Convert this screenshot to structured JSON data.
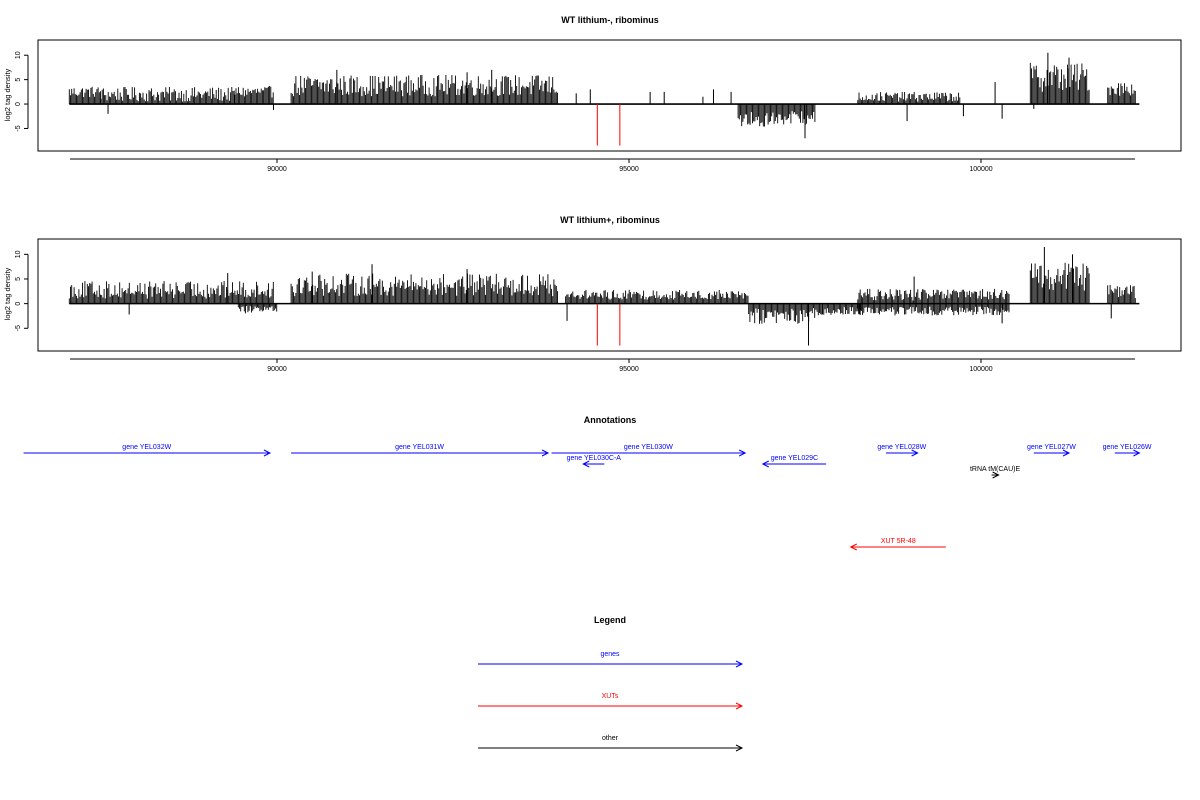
{
  "chart_data": [
    {
      "type": "bar",
      "title": "WT lithium-, ribominus",
      "xlabel": "",
      "ylabel": "log2 tag density",
      "xlim": [
        86100,
        101600
      ],
      "ylim": [
        -9,
        12.5
      ],
      "xticks": [
        90000,
        95000,
        100000
      ],
      "yticks": [
        -5,
        0,
        5,
        10
      ],
      "xtick_labels": [
        "90000",
        "95000",
        "100000"
      ],
      "ytick_labels": [
        "-5",
        "0",
        "5",
        "10"
      ],
      "coverage_segments": [
        {
          "x0": 87050,
          "x1": 87500,
          "mean": 2.5,
          "amp": 1.2,
          "sign": 1
        },
        {
          "x0": 87500,
          "x1": 89400,
          "mean": 2.0,
          "amp": 1.5,
          "sign": 1
        },
        {
          "x0": 89400,
          "x1": 89950,
          "mean": 2.5,
          "amp": 1.2,
          "sign": 1
        },
        {
          "x0": 90200,
          "x1": 94000,
          "mean": 3.8,
          "amp": 2.2,
          "sign": 1
        },
        {
          "x0": 96550,
          "x1": 97650,
          "mean": -3.0,
          "amp": 1.6,
          "sign": -1
        },
        {
          "x0": 98250,
          "x1": 99700,
          "mean": 1.5,
          "amp": 1.0,
          "sign": 1
        },
        {
          "x0": 100700,
          "x1": 101550,
          "mean": 5.5,
          "amp": 3.0,
          "sign": 1
        },
        {
          "x0": 101800,
          "x1": 102200,
          "mean": 3.2,
          "amp": 1.5,
          "sign": 1
        }
      ],
      "peaks": [
        {
          "x": 87600,
          "y": -2.0
        },
        {
          "x": 89950,
          "y": -1.2
        },
        {
          "x": 90850,
          "y": 7.0
        },
        {
          "x": 92700,
          "y": 6.5
        },
        {
          "x": 93050,
          "y": 7.0
        },
        {
          "x": 94250,
          "y": 2.2
        },
        {
          "x": 94450,
          "y": 3.0
        },
        {
          "x": 95300,
          "y": 2.5
        },
        {
          "x": 95500,
          "y": 2.5
        },
        {
          "x": 96050,
          "y": 1.5
        },
        {
          "x": 96200,
          "y": 3.0
        },
        {
          "x": 96450,
          "y": 2.5
        },
        {
          "x": 97500,
          "y": -7.0
        },
        {
          "x": 98950,
          "y": -3.5
        },
        {
          "x": 99750,
          "y": -2.5
        },
        {
          "x": 100200,
          "y": 4.5
        },
        {
          "x": 100300,
          "y": -3.0
        },
        {
          "x": 100750,
          "y": -1.0
        },
        {
          "x": 100950,
          "y": 10.5
        },
        {
          "x": 101250,
          "y": 9.5
        }
      ],
      "red_markers": [
        {
          "x": 94550,
          "y": -8.5
        },
        {
          "x": 94870,
          "y": -8.5
        }
      ]
    },
    {
      "type": "bar",
      "title": "WT lithium+, ribominus",
      "xlabel": "",
      "ylabel": "log2 tag density",
      "xlim": [
        86100,
        101600
      ],
      "ylim": [
        -9,
        12.5
      ],
      "xticks": [
        90000,
        95000,
        100000
      ],
      "yticks": [
        -5,
        0,
        5,
        10
      ],
      "xtick_labels": [
        "90000",
        "95000",
        "100000"
      ],
      "ytick_labels": [
        "-5",
        "0",
        "5",
        "10"
      ],
      "coverage_segments": [
        {
          "x0": 87050,
          "x1": 89950,
          "mean": 2.8,
          "amp": 1.8,
          "sign": 1
        },
        {
          "x0": 89450,
          "x1": 90000,
          "mean": -1.3,
          "amp": 0.8,
          "sign": -1
        },
        {
          "x0": 90200,
          "x1": 94000,
          "mean": 3.8,
          "amp": 2.3,
          "sign": 1
        },
        {
          "x0": 94100,
          "x1": 96700,
          "mean": 1.8,
          "amp": 1.0,
          "sign": 1
        },
        {
          "x0": 96700,
          "x1": 97750,
          "mean": -2.5,
          "amp": 1.6,
          "sign": -1
        },
        {
          "x0": 97750,
          "x1": 98300,
          "mean": -1.5,
          "amp": 0.8,
          "sign": -1
        },
        {
          "x0": 98250,
          "x1": 100400,
          "mean": 1.8,
          "amp": 1.2,
          "sign": 1
        },
        {
          "x0": 98250,
          "x1": 100400,
          "mean": -1.5,
          "amp": 0.9,
          "sign": -1
        },
        {
          "x0": 100700,
          "x1": 101550,
          "mean": 5.5,
          "amp": 3.0,
          "sign": 1
        },
        {
          "x0": 101800,
          "x1": 102200,
          "mean": 2.5,
          "amp": 1.5,
          "sign": 1
        }
      ],
      "peaks": [
        {
          "x": 87900,
          "y": -2.2
        },
        {
          "x": 89300,
          "y": 6.2
        },
        {
          "x": 90500,
          "y": 6.5
        },
        {
          "x": 91350,
          "y": 8.0
        },
        {
          "x": 92700,
          "y": 7.0
        },
        {
          "x": 94120,
          "y": -3.5
        },
        {
          "x": 97550,
          "y": -8.5
        },
        {
          "x": 99050,
          "y": 5.5
        },
        {
          "x": 100300,
          "y": -4.0
        },
        {
          "x": 100900,
          "y": 11.5
        },
        {
          "x": 101300,
          "y": 10.0
        },
        {
          "x": 101850,
          "y": -3.0
        }
      ],
      "red_markers": [
        {
          "x": 94550,
          "y": -8.5
        },
        {
          "x": 94870,
          "y": -8.5
        }
      ]
    }
  ],
  "annotations": {
    "title": "Annotations",
    "features": [
      {
        "label": "gene YEL032W",
        "x0": 86400,
        "x1": 89900,
        "lane": 0,
        "strand": "+",
        "kind": "gene"
      },
      {
        "label": "gene YEL031W",
        "x0": 90200,
        "x1": 93850,
        "lane": 0,
        "strand": "+",
        "kind": "gene"
      },
      {
        "label": "gene YEL030W",
        "x0": 93900,
        "x1": 96650,
        "lane": 0,
        "strand": "+",
        "kind": "gene"
      },
      {
        "label": "gene YEL030C-A",
        "x0": 94350,
        "x1": 94650,
        "lane": 1,
        "strand": "-",
        "kind": "gene"
      },
      {
        "label": "gene YEL029C",
        "x0": 96900,
        "x1": 97800,
        "lane": 1,
        "strand": "-",
        "kind": "gene"
      },
      {
        "label": "gene YEL028W",
        "x0": 98650,
        "x1": 99100,
        "lane": 0,
        "strand": "+",
        "kind": "gene"
      },
      {
        "label": "gene YEL027W",
        "x0": 100750,
        "x1": 101250,
        "lane": 0,
        "strand": "+",
        "kind": "gene"
      },
      {
        "label": "gene YEL026W",
        "x0": 101900,
        "x1": 102250,
        "lane": 0,
        "strand": "+",
        "kind": "gene"
      },
      {
        "label": "tRNA tM(CAU)E",
        "x0": 100150,
        "x1": 100250,
        "lane": 2,
        "strand": "+",
        "kind": "other"
      },
      {
        "label": "XUT 5R-48",
        "x0": 98150,
        "x1": 99500,
        "lane": 3,
        "strand": "-",
        "kind": "xut"
      }
    ]
  },
  "legend": {
    "title": "Legend",
    "items": [
      {
        "label": "genes",
        "kind": "gene"
      },
      {
        "label": "XUTs",
        "kind": "xut"
      },
      {
        "label": "other",
        "kind": "other"
      }
    ]
  },
  "colors": {
    "gene": "#0000ff",
    "xut": "#ff0000",
    "other": "#000000",
    "bar": "#000000",
    "marker": "#ff0000"
  }
}
